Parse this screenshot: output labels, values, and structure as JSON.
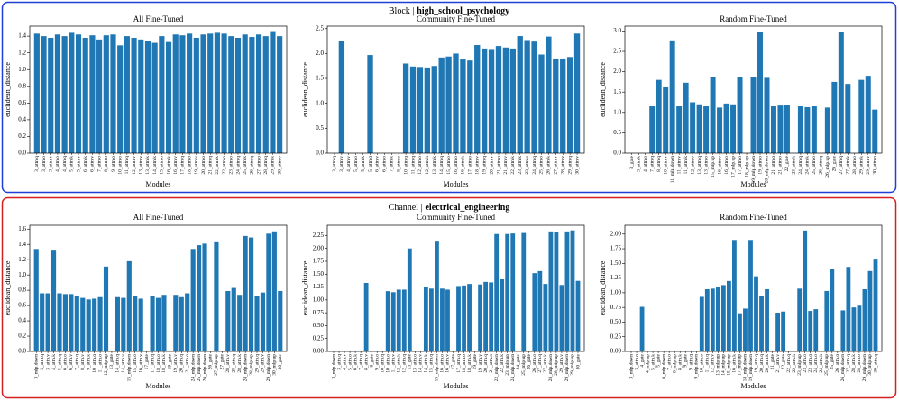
{
  "panels": [
    {
      "label": "Block |",
      "dataset": "high_school_psychology"
    },
    {
      "label": "Channel |",
      "dataset": "electrical_engineering"
    }
  ],
  "chart_data": [
    {
      "type": "bar",
      "title": "All Fine-Tuned",
      "xlabel": "Modules",
      "ylabel": "euclidean_distance",
      "color": "#1f77b4",
      "categories": [
        "3_attn.q",
        "3_attn.o",
        "3_attn.v",
        "4_attn.o",
        "4_attn.q",
        "5_attn.k",
        "5_attn.v",
        "6_attn.k",
        "6_attn.v",
        "7_attn.o",
        "8_attn.o",
        "9_attn.o",
        "10_attn.o",
        "11_attn.q",
        "12_attn.v",
        "13_attn.v",
        "13_attn.k",
        "14_attn.k",
        "15_attn.o",
        "16_attn.k",
        "16_attn.v",
        "17_attn.q",
        "18_attn.o",
        "19_attn.v",
        "20_attn.o",
        "21_attn.q",
        "22_attn.k",
        "22_attn.o",
        "23_attn.o",
        "24_attn.q",
        "25_attn.k",
        "26_attn.q",
        "27_attn.o",
        "28_attn.q",
        "29_attn.k",
        "30_attn.v"
      ],
      "values": [
        1.43,
        1.4,
        1.38,
        1.42,
        1.4,
        1.44,
        1.42,
        1.38,
        1.41,
        1.36,
        1.41,
        1.42,
        1.29,
        1.4,
        1.38,
        1.36,
        1.34,
        1.32,
        1.4,
        1.33,
        1.42,
        1.41,
        1.43,
        1.38,
        1.42,
        1.43,
        1.44,
        1.43,
        1.4,
        1.38,
        1.42,
        1.39,
        1.42,
        1.4,
        1.46,
        1.4
      ],
      "ylim": [
        0,
        1.52
      ],
      "yticks": [
        {
          "value": 0,
          "label": "0.0"
        },
        0.2,
        0.4,
        0.6,
        0.8,
        {
          "value": 1,
          "label": "1.0"
        },
        1.2,
        1.4
      ]
    },
    {
      "type": "bar",
      "title": "Community Fine-Tuned",
      "xlabel": "Modules",
      "ylabel": "euclidean_distance",
      "color": "#1f77b4",
      "categories": [
        "3_attn.q",
        "3_attn.v",
        "4_attn.v",
        "5_attn.o",
        "5_attn.k",
        "5_attn.q",
        "6_attn.v",
        "6_attn.o",
        "7_attn.k",
        "8_attn.o",
        "10_attn.q",
        "11_attn.q",
        "12_attn.o",
        "12_attn.k",
        "13_attn.k",
        "14_attn.q",
        "15_attn.o",
        "16_attn.o",
        "16_attn.k",
        "17_attn.o",
        "18_attn.v",
        "19_attn.q",
        "20_attn.v",
        "21_attn.o",
        "21_attn.v",
        "22_attn.k",
        "23_attn.k",
        "23_attn.o",
        "24_attn.q",
        "25_attn.o",
        "26_attn.k",
        "27_attn.v",
        "28_attn.v",
        "29_attn.q",
        "30_attn.v"
      ],
      "values": [
        0,
        2.25,
        0,
        0,
        0,
        1.97,
        0,
        0,
        0,
        0,
        1.8,
        1.74,
        1.73,
        1.72,
        1.75,
        1.92,
        1.94,
        2.0,
        1.88,
        1.86,
        2.17,
        2.1,
        2.09,
        2.15,
        2.12,
        2.1,
        2.35,
        2.27,
        2.24,
        1.98,
        2.34,
        1.9,
        1.9,
        1.93,
        2.4
      ],
      "ylim": [
        0,
        2.55
      ],
      "yticks": [
        {
          "value": 0,
          "label": "0.0"
        },
        0.5,
        {
          "value": 1,
          "label": "1.0"
        },
        1.5,
        {
          "value": 2,
          "label": "2.0"
        },
        2.5
      ]
    },
    {
      "type": "bar",
      "title": "Random Fine-Tuned",
      "xlabel": "Modules",
      "ylabel": "euclidean_distance",
      "color": "#1f77b4",
      "categories": [
        "3_gate",
        "3_attn.k",
        "4_attn.o",
        "7_attn.q",
        "8_attn.q",
        "10_attn.v",
        "11_mlp.down",
        "11_attn.v",
        "11_attn.k",
        "12_attn.v",
        "13_attn.q",
        "13_attn.o",
        "15_mlp.up",
        "16_attn.v",
        "16_attn.o",
        "17_mlp.up",
        "17_attn.o",
        "18_mlp.up",
        "19_mlp.down",
        "19_attn.o",
        "20_mlp.down",
        "21_attn.q",
        "21_attn.o",
        "22_gate",
        "23_attn.k",
        "24_attn.q",
        "24_attn.k",
        "25_attn.o",
        "26_attn.q",
        "26_mlp.up",
        "26_gate",
        "27_attn.q",
        "27_attn.k",
        "28_attn.o",
        "29_attn.k",
        "29_attn.v",
        "30_attn.o"
      ],
      "values": [
        0,
        0,
        0,
        1.15,
        1.8,
        1.63,
        2.77,
        1.15,
        1.73,
        1.25,
        1.2,
        1.15,
        1.88,
        1.12,
        1.22,
        1.2,
        1.88,
        0,
        1.87,
        2.97,
        1.85,
        1.15,
        1.17,
        1.18,
        0,
        1.15,
        1.13,
        1.15,
        0,
        1.12,
        1.75,
        2.98,
        1.7,
        0,
        1.8,
        1.9,
        1.07
      ],
      "ylim": [
        0,
        3.12
      ],
      "yticks": [
        {
          "value": 0,
          "label": "0.0"
        },
        0.5,
        {
          "value": 1,
          "label": "1.0"
        },
        1.5,
        {
          "value": 2,
          "label": "2.0"
        },
        2.5,
        {
          "value": 3,
          "label": "3.0"
        }
      ]
    },
    {
      "type": "bar",
      "title": "All Fine-Tuned",
      "xlabel": "Modules",
      "ylabel": "euclidean_distance",
      "color": "#1f77b4",
      "categories": [
        "3_mlp.down",
        "3_attn.q",
        "3_attn.v",
        "4_attn.k",
        "5_attn.q",
        "6_attn.o",
        "6_attn.v",
        "7_attn.q",
        "8_attn.v",
        "9_attn.k",
        "10_attn.q",
        "11_attn.o",
        "12_mlp.up",
        "13_gate",
        "14_attn.q",
        "14_attn.v",
        "15_mlp.down",
        "15_attn.o",
        "16_attn.v",
        "17_gate",
        "17_attn.q",
        "18_attn.o",
        "18_attn.k",
        "19_gate",
        "19_attn.v",
        "20_attn.q",
        "21_attn.o",
        "24_mlp.down",
        "25_mlp.down",
        "26_mlp.down",
        "26_gate",
        "27_mlp.up",
        "27_gate",
        "28_attn.v",
        "28_attn.q",
        "28_attn.k",
        "28_mlp.down",
        "28_mlp.up",
        "29_attn.q",
        "29_attn.v",
        "29_mlp.down",
        "30_mlp.up",
        "30_gate"
      ],
      "values": [
        1.34,
        0.76,
        0.76,
        1.33,
        0.76,
        0.75,
        0.75,
        0.72,
        0.7,
        0.68,
        0.69,
        0.71,
        1.11,
        0,
        0.71,
        0.7,
        1.18,
        0.73,
        0.69,
        0,
        0.73,
        0.7,
        0.74,
        0,
        0.74,
        0.71,
        0.76,
        1.34,
        1.39,
        1.41,
        0,
        1.44,
        0,
        0.79,
        0.83,
        0.74,
        1.51,
        1.49,
        0.73,
        0.77,
        1.54,
        1.57,
        0.79
      ],
      "ylim": [
        0,
        1.65
      ],
      "yticks": [
        {
          "value": 0,
          "label": "0.0"
        },
        0.2,
        0.4,
        0.6,
        0.8,
        {
          "value": 1,
          "label": "1.0"
        },
        1.2,
        1.4,
        1.6
      ]
    },
    {
      "type": "bar",
      "title": "Community Fine-Tuned",
      "xlabel": "Modules",
      "ylabel": "euclidean_distance",
      "color": "#1f77b4",
      "categories": [
        "3_mlp.down",
        "3_attn.q",
        "4_attn.v",
        "5_attn.o",
        "6_attn.k",
        "7_attn.q",
        "8_attn.v",
        "8_gate",
        "9_attn.o",
        "10_attn.q",
        "10_attn.o",
        "11_attn.v",
        "12_attn.k",
        "12_attn.q",
        "13_gate",
        "13_attn.o",
        "14_attn.v",
        "14_attn.k",
        "15_attn.q",
        "15_mlp.down",
        "16_attn.o",
        "16_attn.v",
        "17_gate",
        "17_attn.q",
        "18_attn.o",
        "18_attn.k",
        "19_gate",
        "19_attn.v",
        "20_attn.q",
        "21_attn.o",
        "22_mlp.down",
        "22_attn.k",
        "23_mlp.up",
        "24_mlp.down",
        "24_gate",
        "25_mlp.up",
        "26_gate",
        "26_attn.o",
        "27_attn.q",
        "27_attn.k",
        "28_mlp.down",
        "28_mlp.up",
        "29_attn.v",
        "29_mlp.down",
        "29_mlp.up",
        "30_gate"
      ],
      "values": [
        0,
        0,
        0,
        0,
        0,
        0,
        1.33,
        0,
        0,
        0,
        1.17,
        1.15,
        1.2,
        1.2,
        2.0,
        0,
        0,
        1.25,
        1.22,
        2.15,
        1.22,
        1.2,
        0,
        1.27,
        1.28,
        1.31,
        0,
        1.3,
        1.35,
        1.34,
        2.28,
        1.4,
        2.28,
        2.29,
        0,
        2.3,
        0,
        1.52,
        1.56,
        1.31,
        2.33,
        2.32,
        1.29,
        2.33,
        2.35,
        1.37
      ],
      "ylim": [
        0,
        2.45
      ],
      "yticks": [
        {
          "value": 0,
          "label": "0.00"
        },
        0.25,
        {
          "value": 0.5,
          "label": "0.50"
        },
        0.75,
        {
          "value": 1,
          "label": "1.00"
        },
        1.25,
        {
          "value": 1.5,
          "label": "1.50"
        },
        1.75,
        {
          "value": 2,
          "label": "2.00"
        },
        2.25
      ]
    },
    {
      "type": "bar",
      "title": "Random Fine-Tuned",
      "xlabel": "Modules",
      "ylabel": "euclidean_distance",
      "color": "#1f77b4",
      "categories": [
        "3_mlp.down",
        "3_attn.o",
        "4_gate",
        "4_mlp.up",
        "5_attn.k",
        "5_gate",
        "6_mlp.down",
        "7_attn.o",
        "8_mlp.up",
        "8_attn.k",
        "9_gate",
        "9_attn.q",
        "9_mlp.down",
        "10_attn.o",
        "11_attn.q",
        "12_attn.v",
        "13_mlp.up",
        "14_mlp.up",
        "15_mlp.up",
        "16_attn.k",
        "17_mlp.up",
        "18_mlp.down",
        "19_mlp.down",
        "19_attn.q",
        "20_attn.q",
        "20_attn.k",
        "21_gate",
        "21_attn.v",
        "22_gate",
        "22_attn.q",
        "22_attn.k",
        "23_mlp.up",
        "23_attn.o",
        "23_attn.q",
        "24_attn.o",
        "24_attn.k",
        "25_mlp.up",
        "25_gate",
        "26_attn.q",
        "26_mlp.down",
        "27_attn.q",
        "28_attn.k",
        "28_attn.o",
        "29_mlp.down",
        "30_mlp.up",
        "30_attn.q"
      ],
      "values": [
        0,
        0,
        0.76,
        0,
        0,
        0,
        0,
        0,
        0,
        0,
        0,
        0,
        0,
        0.93,
        1.06,
        1.07,
        1.09,
        1.13,
        1.2,
        1.9,
        0.65,
        0.73,
        1.9,
        1.28,
        0.94,
        1.06,
        0,
        0.66,
        0.68,
        0,
        0,
        1.07,
        2.06,
        0.69,
        0.72,
        0,
        1.03,
        1.41,
        0,
        0.7,
        1.44,
        0.75,
        0.78,
        1.06,
        1.37,
        1.58
      ],
      "ylim": [
        0,
        2.15
      ],
      "yticks": [
        {
          "value": 0,
          "label": "0.00"
        },
        0.25,
        {
          "value": 0.5,
          "label": "0.50"
        },
        0.75,
        {
          "value": 1,
          "label": "1.00"
        },
        1.25,
        {
          "value": 1.5,
          "label": "1.50"
        },
        1.75,
        {
          "value": 2,
          "label": "2.00"
        }
      ]
    }
  ]
}
